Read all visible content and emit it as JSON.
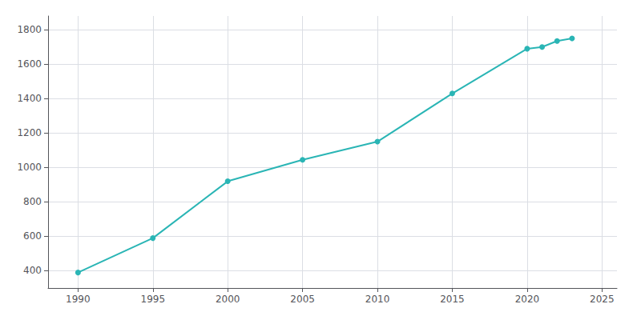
{
  "chart_data": {
    "type": "line",
    "x": [
      1990,
      1995,
      2000,
      2005,
      2010,
      2015,
      2020,
      2021,
      2022,
      2023
    ],
    "values": [
      390,
      590,
      920,
      1045,
      1150,
      1430,
      1690,
      1700,
      1735,
      1750
    ],
    "color": "#2ab5b5",
    "marker": "circle",
    "xlim": [
      1988,
      2026
    ],
    "ylim": [
      300,
      1880
    ],
    "xticks": [
      1990,
      1995,
      2000,
      2005,
      2010,
      2015,
      2020,
      2025
    ],
    "yticks": [
      400,
      600,
      800,
      1000,
      1200,
      1400,
      1600,
      1800
    ],
    "grid": true
  }
}
